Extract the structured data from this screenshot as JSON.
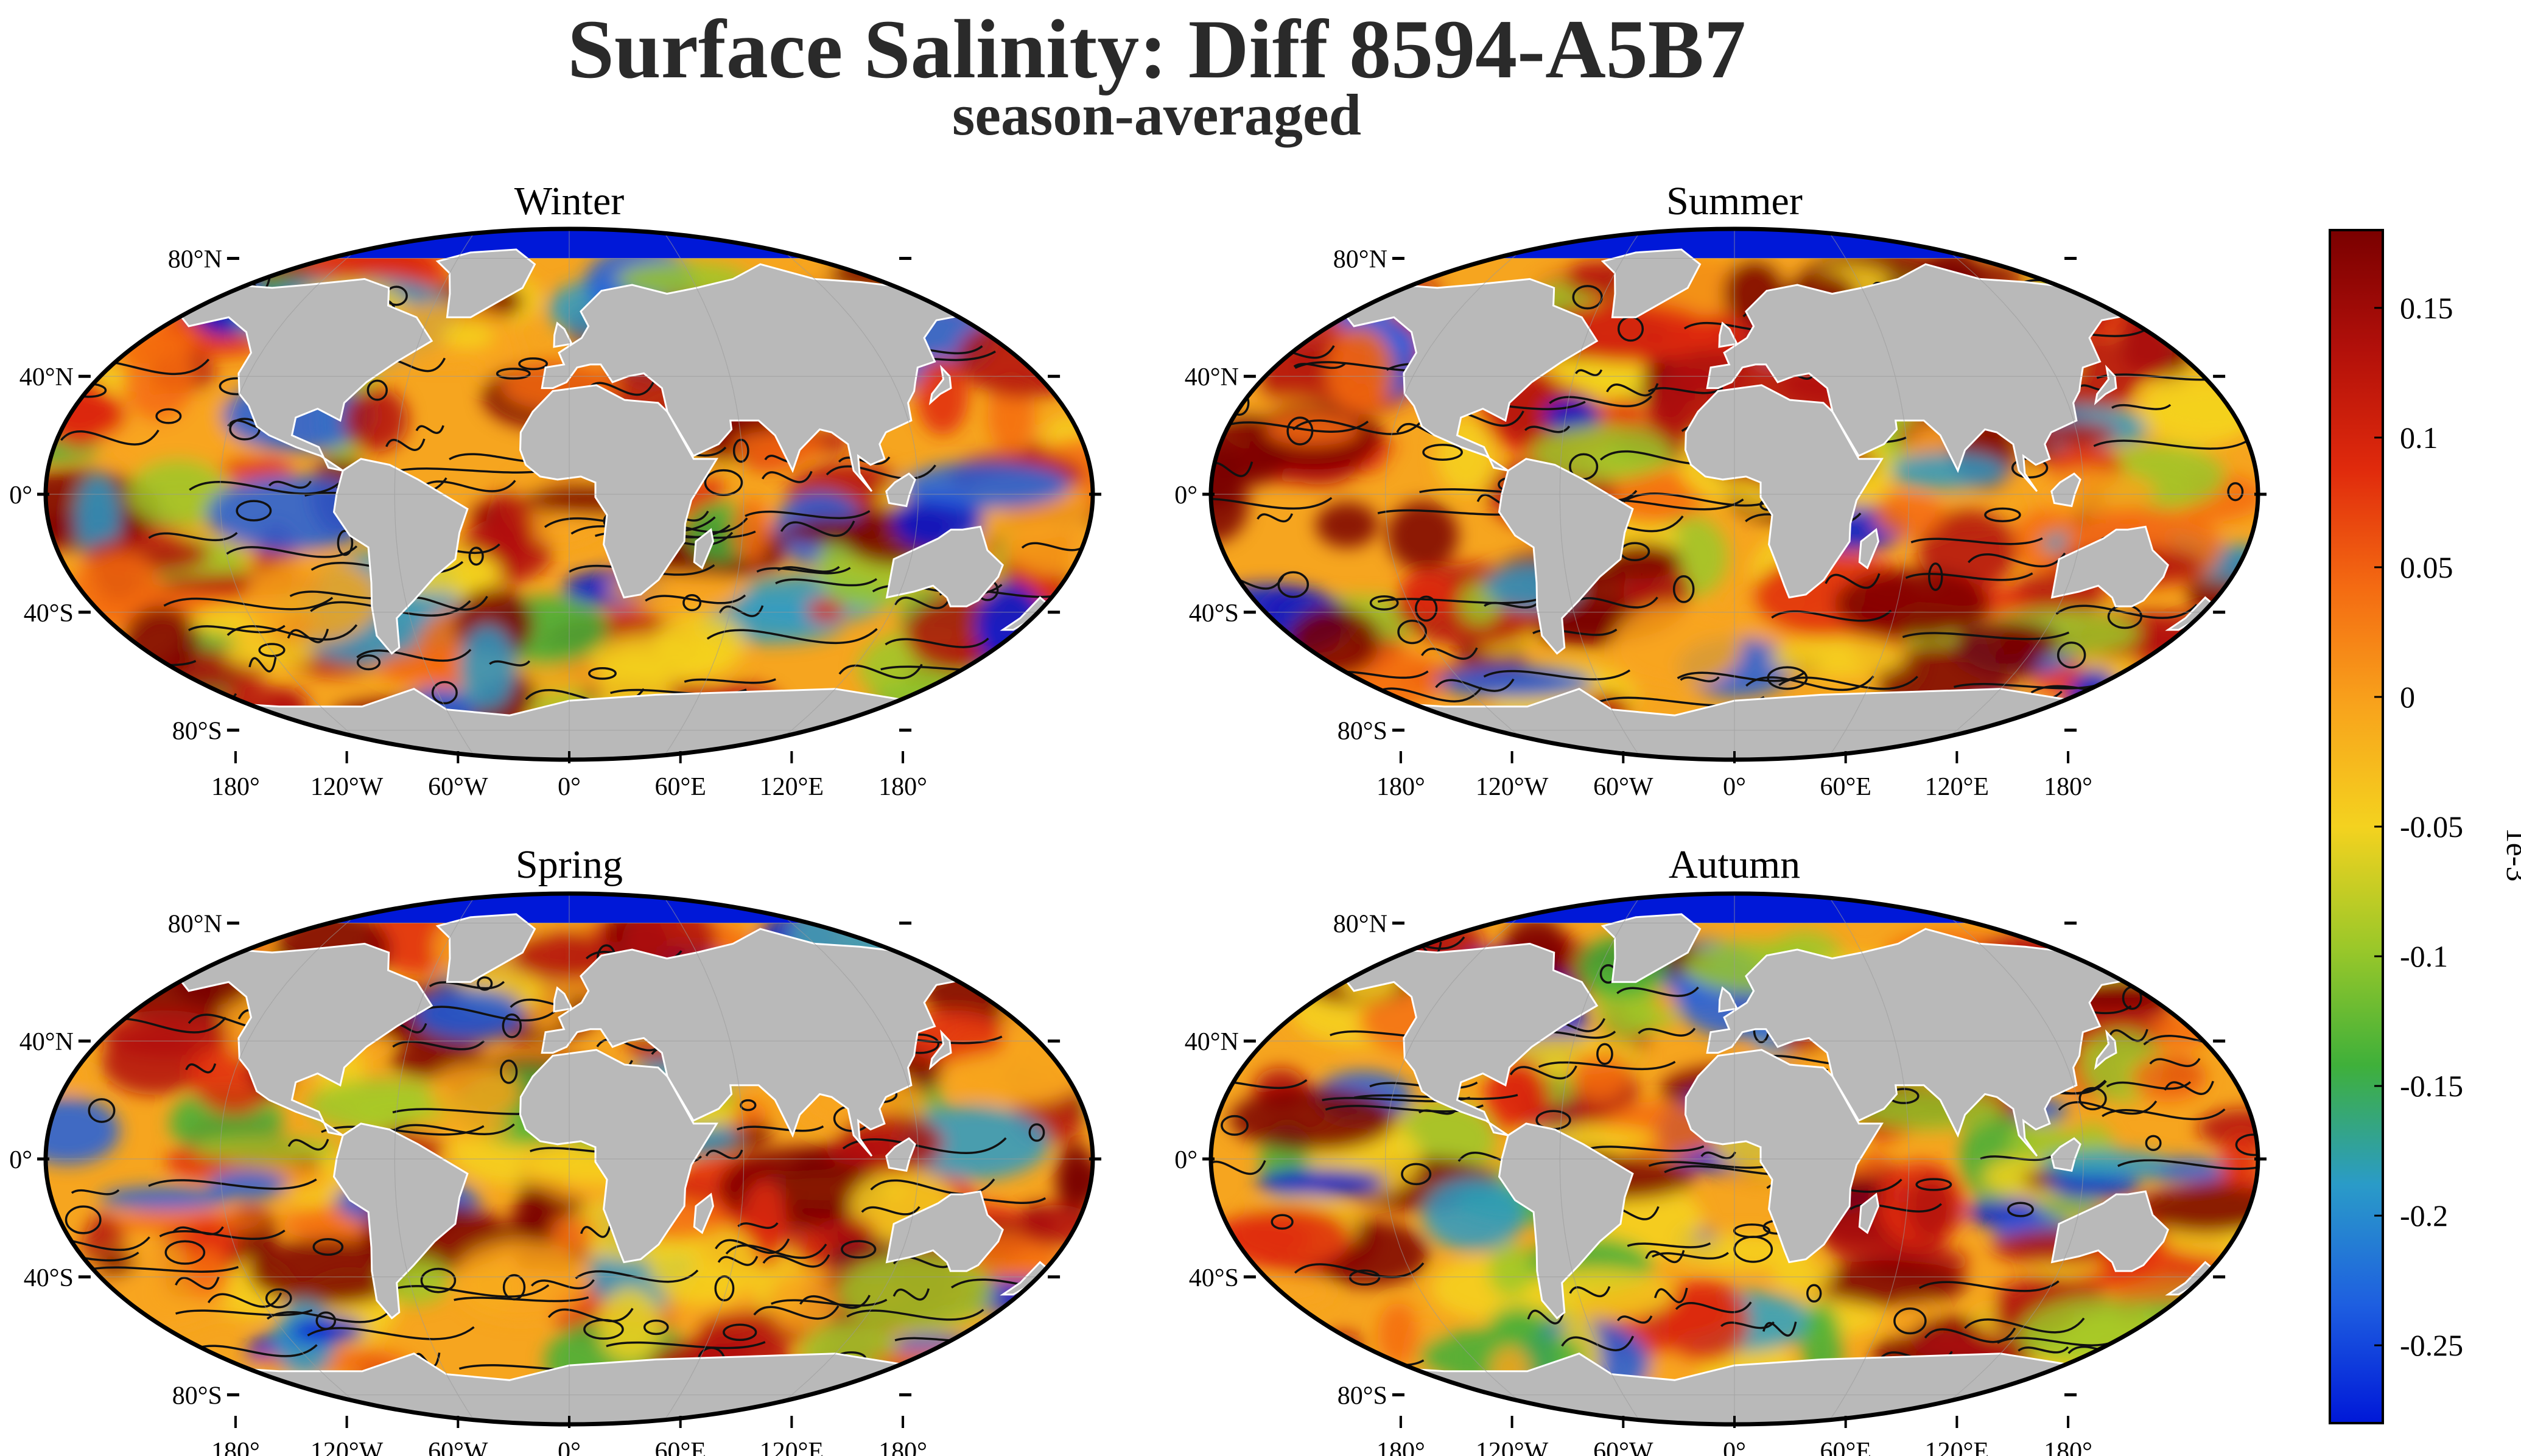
{
  "title": "Surface Salinity: Diff 8594-A5B7",
  "subtitle": "season-averaged",
  "panels": [
    {
      "key": "winter",
      "title": "Winter"
    },
    {
      "key": "summer",
      "title": "Summer"
    },
    {
      "key": "spring",
      "title": "Spring"
    },
    {
      "key": "autumn",
      "title": "Autumn"
    }
  ],
  "lat_labels": [
    "80°N",
    "40°N",
    "0°",
    "40°S",
    "80°S"
  ],
  "lon_labels": [
    "180°",
    "120°W",
    "60°W",
    "0°",
    "60°E",
    "120°E",
    "180°"
  ],
  "projection": "Robinson",
  "colorbar": {
    "unit_label": "1e-3",
    "ticks": [
      "0.15",
      "0.1",
      "0.05",
      "0",
      "-0.05",
      "-0.1",
      "-0.15",
      "-0.2",
      "-0.25"
    ],
    "colormap": [
      "#0018d8",
      "#1e5fe0",
      "#2a9bc8",
      "#3fb03a",
      "#9cc829",
      "#f4d21f",
      "#f8a41c",
      "#f46b12",
      "#e02a0c",
      "#b2100a",
      "#7a0000"
    ]
  },
  "colors": {
    "land": "#b9b9b9",
    "ocean_base": "#f6a51f",
    "contour": "#111111",
    "frame": "#000000"
  }
}
